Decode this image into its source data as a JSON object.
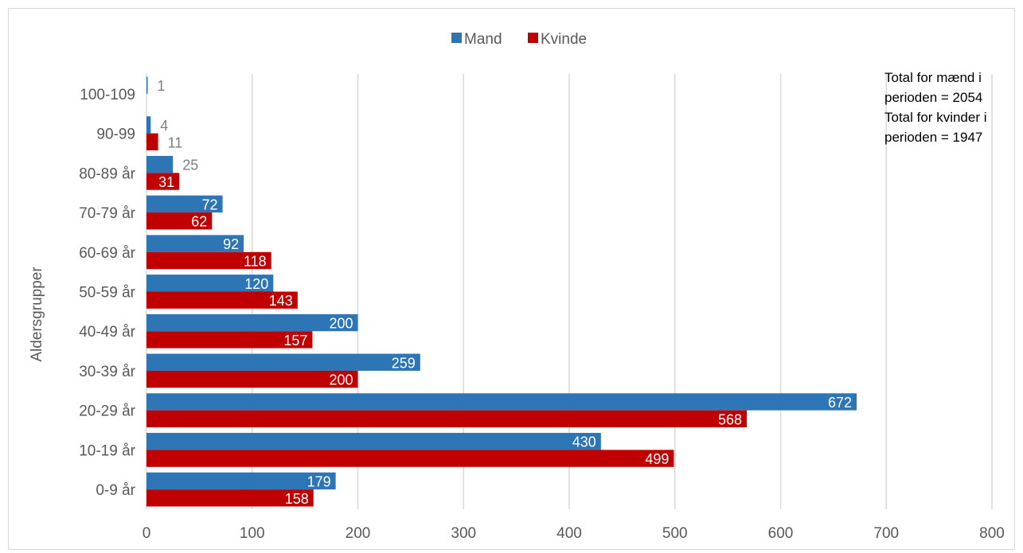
{
  "chart_data": {
    "type": "bar",
    "orientation": "horizontal",
    "categories": [
      "0-9 år",
      "10-19 år",
      "20-29 år",
      "30-39 år",
      "40-49 år",
      "50-59 år",
      "60-69 år",
      "70-79 år",
      "80-89 år",
      "90-99",
      "100-109"
    ],
    "series": [
      {
        "name": "Mand",
        "color": "#2E75B6",
        "values": [
          179,
          430,
          672,
          259,
          200,
          120,
          92,
          72,
          25,
          4,
          1
        ],
        "labels": [
          "179",
          "430",
          "672",
          "259",
          "200",
          "120",
          "92",
          "72",
          "25",
          "4",
          "1"
        ]
      },
      {
        "name": "Kvinde",
        "color": "#C00000",
        "values": [
          158,
          499,
          568,
          200,
          157,
          143,
          118,
          62,
          31,
          11,
          null
        ],
        "labels": [
          "158",
          "499",
          "568",
          "200",
          "157",
          "143",
          "118",
          "62",
          "31",
          "11",
          ""
        ]
      }
    ],
    "xlim": [
      0,
      800
    ],
    "xticks": [
      "0",
      "100",
      "200",
      "300",
      "400",
      "500",
      "600",
      "700",
      "800"
    ],
    "ylabel": "Aldersgrupper",
    "xlabel": "",
    "title": "",
    "legend_position": "top",
    "grid": "vertical",
    "annotation": [
      "Total for mænd i",
      "perioden = 2054",
      "Total for kvinder i",
      "perioden = 1947"
    ]
  }
}
